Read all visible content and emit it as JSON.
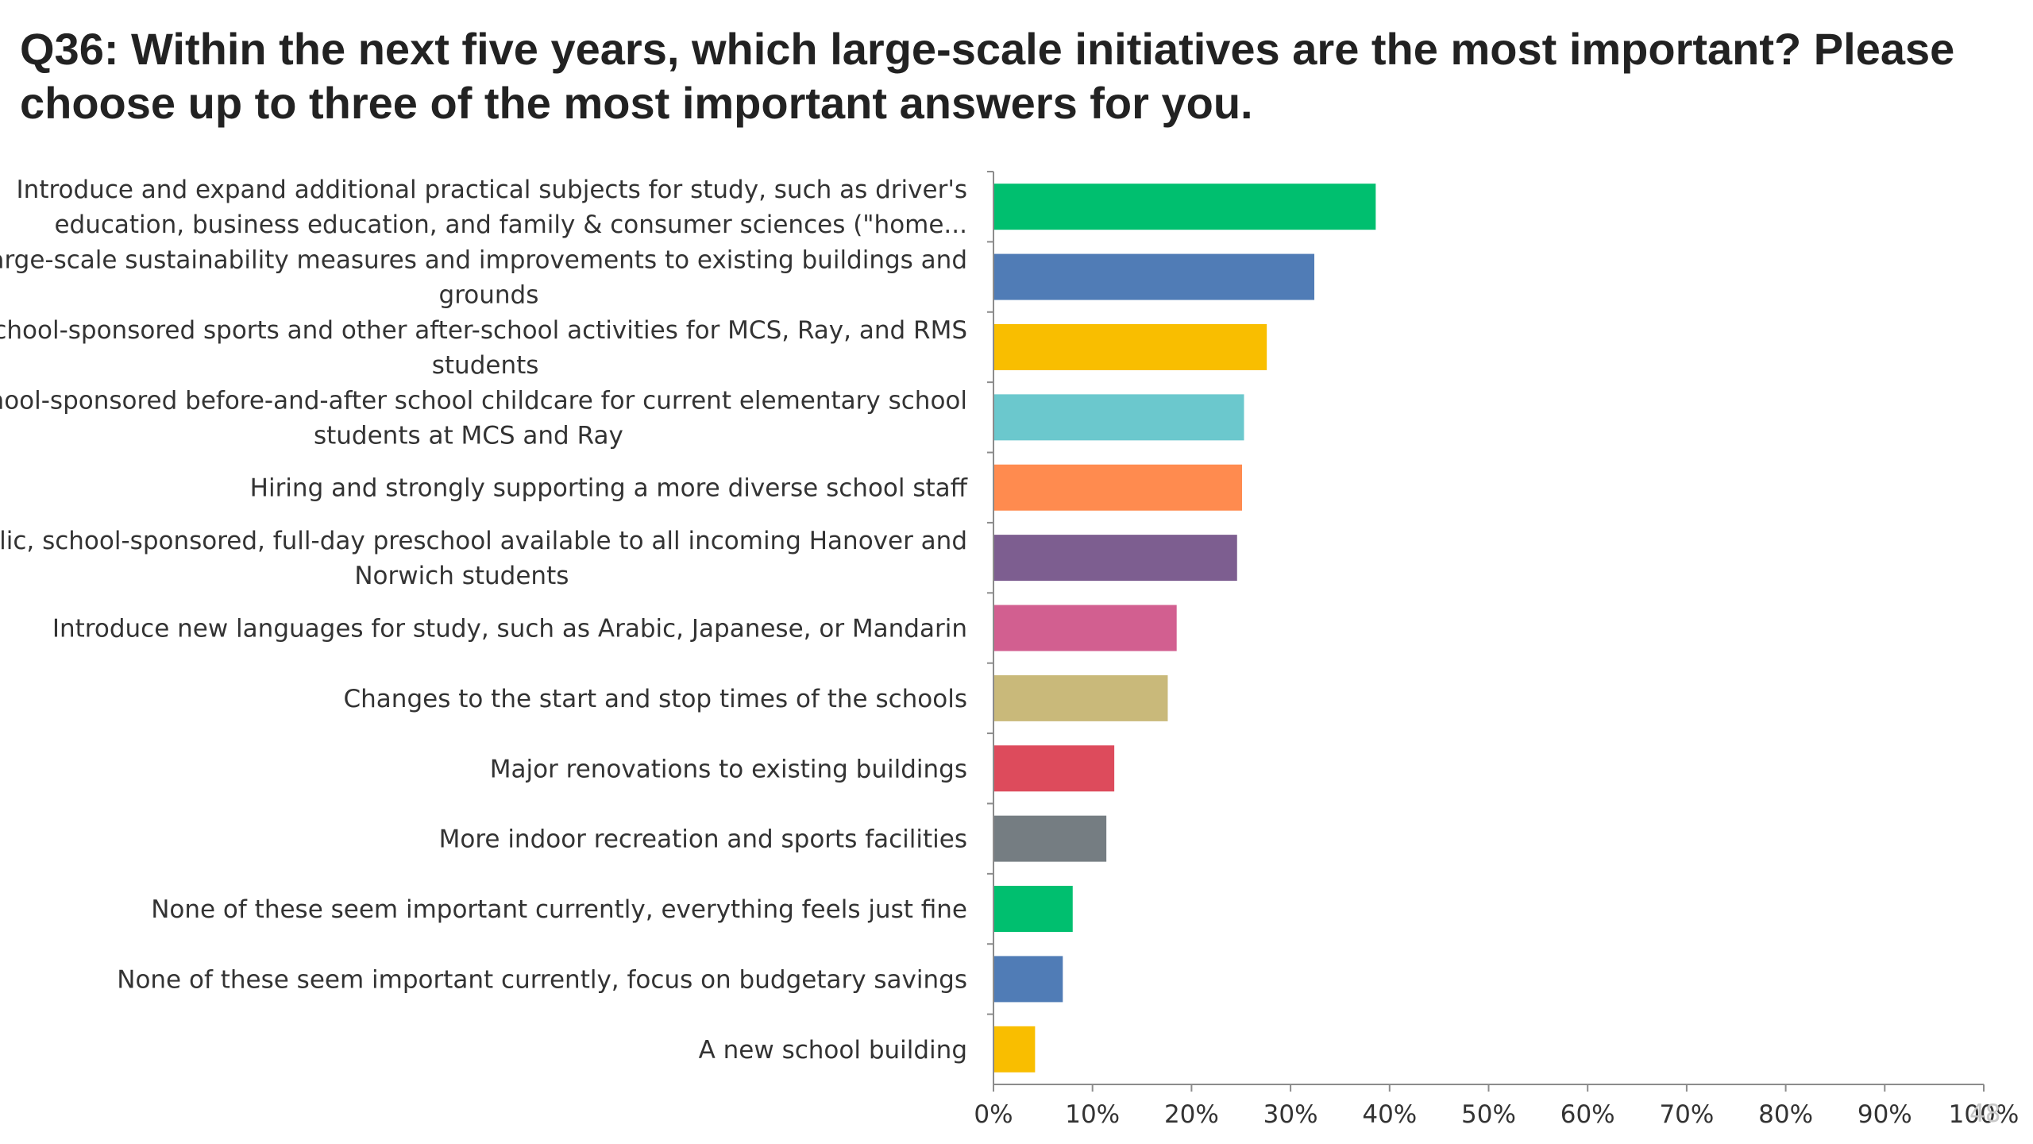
{
  "title": "Q36: Within the next five years, which large-scale initiatives are the most important? Please choose up to three of the most important answers for you.",
  "page_number": "48",
  "chart_data": {
    "type": "bar",
    "orientation": "horizontal",
    "categories": [
      [
        "Introduce and expand additional practical subjects for study, such as driver's",
        "education, business education, and family & consumer sciences (\"home..."
      ],
      [
        "Large-scale sustainability measures and improvements to existing buildings and",
        "grounds"
      ],
      [
        "School-sponsored sports and other after-school activities for MCS, Ray, and RMS",
        "students"
      ],
      [
        "School-sponsored before-and-after school childcare for current elementary school",
        "students at MCS and Ray"
      ],
      [
        "Hiring and strongly supporting a more diverse school staff"
      ],
      [
        "Public, school-sponsored, full-day preschool available to all incoming Hanover and",
        "Norwich students"
      ],
      [
        "Introduce new languages for study, such as Arabic, Japanese, or Mandarin"
      ],
      [
        "Changes to the start and stop times of the schools"
      ],
      [
        "Major renovations to existing buildings"
      ],
      [
        "More indoor recreation and sports facilities"
      ],
      [
        "None of these seem important currently, everything feels just fine"
      ],
      [
        "None of these seem important currently, focus on budgetary savings"
      ],
      [
        "A new school building"
      ]
    ],
    "values": [
      38.6,
      32.4,
      27.6,
      25.3,
      25.1,
      24.6,
      18.5,
      17.6,
      12.2,
      11.4,
      8.0,
      7.0,
      4.2
    ],
    "colors": [
      "#00bf6f",
      "#507cb6",
      "#f9be00",
      "#6bc8cd",
      "#ff8b4f",
      "#7d5e90",
      "#d25f90",
      "#c9b97a",
      "#dd4b5c",
      "#757d82",
      "#00bf6f",
      "#507cb6",
      "#f9be00"
    ],
    "xlim": [
      0,
      100
    ],
    "xticks": [
      "0%",
      "10%",
      "20%",
      "30%",
      "40%",
      "50%",
      "60%",
      "70%",
      "80%",
      "90%",
      "100%"
    ],
    "xlabel": "",
    "ylabel": "",
    "grid": false,
    "legend": "none"
  }
}
